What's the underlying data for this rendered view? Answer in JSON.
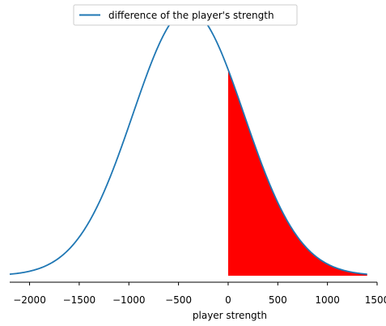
{
  "chart_data": {
    "type": "line",
    "title": "",
    "xlabel": "player strength",
    "ylabel": "",
    "xlim": [
      -2200,
      1500
    ],
    "ylim": [
      0,
      1
    ],
    "grid": false,
    "legend_position": "top-center",
    "x_ticks": [
      -2000,
      -1500,
      -1000,
      -500,
      0,
      500,
      1000,
      1500
    ],
    "x_tick_labels": [
      "−2000",
      "−1500",
      "−1000",
      "−500",
      "0",
      "500",
      "1000",
      "1500"
    ],
    "series": [
      {
        "name": "difference of the player's strength",
        "color": "#1f77b4",
        "distribution": "normal",
        "mean": -400,
        "std": 560,
        "x_range": [
          -2200,
          1400
        ],
        "peak_value": 1
      }
    ],
    "shaded_region": {
      "x_from": 0,
      "x_to": 1400,
      "color": "#ff0000"
    }
  }
}
